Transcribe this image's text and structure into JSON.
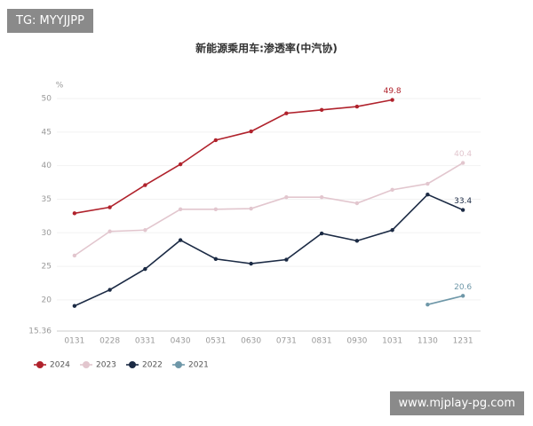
{
  "chart_data": {
    "type": "line",
    "title": "新能源乘用车:渗透率(中汽协)",
    "y_label": "%",
    "categories": [
      "0131",
      "0228",
      "0331",
      "0430",
      "0531",
      "0630",
      "0731",
      "0831",
      "0930",
      "1031",
      "1130",
      "1231"
    ],
    "series": [
      {
        "name": "2024",
        "color": "#b0222c",
        "values": [
          32.9,
          33.8,
          37.1,
          40.2,
          43.8,
          45.1,
          47.8,
          48.3,
          48.8,
          49.8,
          null,
          null
        ]
      },
      {
        "name": "2023",
        "color": "#e2c6ce",
        "values": [
          26.6,
          30.2,
          30.4,
          33.5,
          33.5,
          33.6,
          35.3,
          35.3,
          34.4,
          36.4,
          37.3,
          40.4
        ]
      },
      {
        "name": "2022",
        "color": "#1b2a44",
        "values": [
          19.1,
          21.5,
          24.6,
          28.9,
          26.1,
          25.4,
          26.0,
          29.9,
          28.8,
          30.4,
          35.7,
          33.4
        ]
      },
      {
        "name": "2021",
        "color": "#6e97a8",
        "values": [
          null,
          null,
          null,
          null,
          null,
          null,
          null,
          null,
          null,
          null,
          19.3,
          20.6
        ]
      }
    ],
    "ylim": [
      15.36,
      50
    ],
    "yticks": [
      15.36,
      20,
      25,
      30,
      35,
      40,
      45,
      50
    ],
    "grid": true,
    "legend": "bottom-left"
  },
  "watermarks": [
    "TG: MYYJJPP",
    "www.mjplay-pg.com"
  ]
}
